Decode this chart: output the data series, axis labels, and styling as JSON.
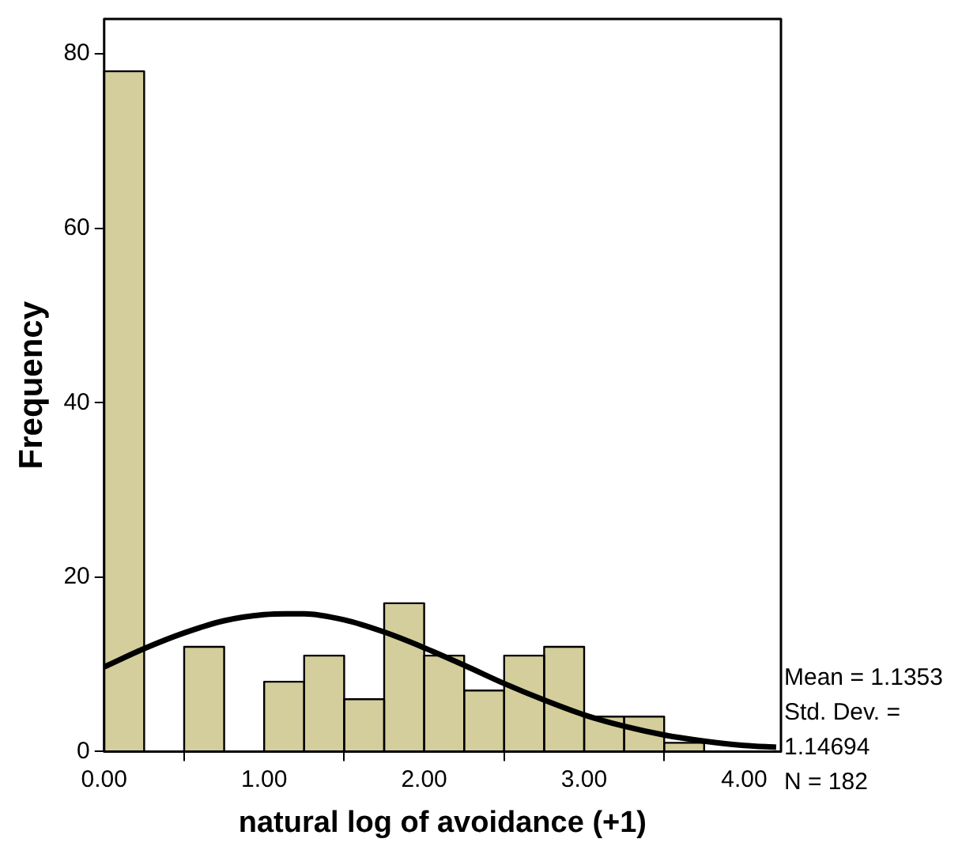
{
  "chart_data": {
    "type": "histogram",
    "xlabel": "natural log of avoidance (+1)",
    "ylabel": "Frequency",
    "bins": [
      0,
      0.25,
      0.5,
      0.75,
      1,
      1.25,
      1.5,
      1.75,
      2,
      2.25,
      2.5,
      2.75,
      3,
      3.25,
      3.5,
      3.75
    ],
    "values": [
      78,
      0,
      12,
      0,
      8,
      11,
      6,
      17,
      11,
      7,
      11,
      12,
      4,
      4,
      1
    ],
    "color": "#d3ce9b",
    "series": [
      {
        "type": "line",
        "color": "#000000",
        "x": [
          0,
          0.25,
          0.5,
          0.75,
          1,
          1.14,
          1.25,
          1.5,
          1.75,
          2,
          2.25,
          2.5,
          2.75,
          3,
          3.25,
          3.5,
          3.75,
          4,
          4.2
        ],
        "values": [
          9.7,
          11.8,
          13.6,
          15,
          15.7,
          15.8,
          15.8,
          15.1,
          13.7,
          11.9,
          9.9,
          7.8,
          5.9,
          4.2,
          2.9,
          1.9,
          1.2,
          0.7,
          0.5
        ]
      }
    ],
    "xlim": [
      0,
      4.23
    ],
    "ylim": [
      0,
      84
    ],
    "xticks": [
      {
        "value": 0,
        "label": "0.00"
      },
      {
        "value": 1,
        "label": "1.00"
      },
      {
        "value": 2,
        "label": "2.00"
      },
      {
        "value": 3,
        "label": "3.00"
      },
      {
        "value": 4,
        "label": "4.00"
      }
    ],
    "yticks": [
      0,
      20,
      40,
      60,
      80
    ],
    "grid": false,
    "legend": false,
    "annotations": [
      "Mean = 1.1353",
      "Std. Dev. = 1.14694",
      "N = 182"
    ]
  }
}
